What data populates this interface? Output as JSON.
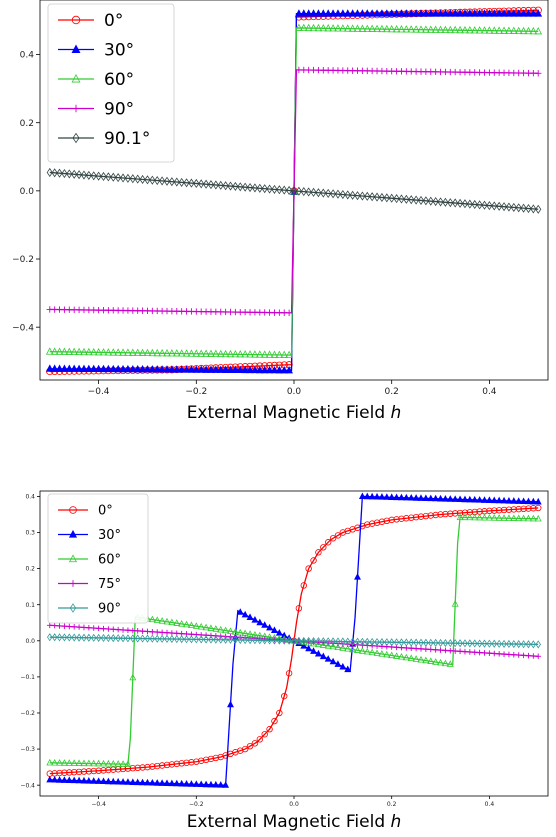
{
  "chart_data": [
    {
      "type": "line",
      "xlabel": "External Magnetic Field",
      "xlabel_var": "h",
      "xlim": [
        -0.52,
        0.52
      ],
      "ylim": [
        -0.555,
        0.56
      ],
      "xticks": [
        -0.4,
        -0.2,
        0.0,
        0.2,
        0.4
      ],
      "xtick_labels": [
        "−0.4",
        "−0.2",
        "0.0",
        "0.2",
        "0.4"
      ],
      "yticks": [
        -0.4,
        -0.2,
        0.0,
        0.2,
        0.4
      ],
      "ytick_labels": [
        "−0.4",
        "−0.2",
        "0.0",
        "0.2",
        "0.4"
      ],
      "grid": false,
      "legend_position": "top-left",
      "series": [
        {
          "name": "0°",
          "color": "#ff0000",
          "marker": "circle-open",
          "points": [
            [
              -0.5,
              -0.53
            ],
            [
              -0.25,
              -0.525
            ],
            [
              -0.005,
              -0.51
            ],
            [
              0.005,
              0.51
            ],
            [
              0.25,
              0.52
            ],
            [
              0.5,
              0.53
            ]
          ]
        },
        {
          "name": "30°",
          "color": "#0000ff",
          "marker": "triangle-filled",
          "points": [
            [
              -0.5,
              -0.522
            ],
            [
              -0.005,
              -0.527
            ],
            [
              0.005,
              0.52
            ],
            [
              0.5,
              0.52
            ]
          ]
        },
        {
          "name": "60°",
          "color": "#33cc33",
          "marker": "triangle-open",
          "points": [
            [
              -0.5,
              -0.472
            ],
            [
              -0.005,
              -0.482
            ],
            [
              0.005,
              0.478
            ],
            [
              0.5,
              0.468
            ]
          ]
        },
        {
          "name": "90°",
          "color": "#cc00cc",
          "marker": "plus",
          "points": [
            [
              -0.5,
              -0.348
            ],
            [
              -0.005,
              -0.358
            ],
            [
              0.005,
              0.355
            ],
            [
              0.5,
              0.345
            ]
          ]
        },
        {
          "name": "90.1°",
          "color": "#334444",
          "marker": "diamond-open",
          "points": [
            [
              -0.5,
              0.054
            ],
            [
              0.5,
              -0.054
            ]
          ]
        }
      ]
    },
    {
      "type": "line",
      "xlabel": "External Magnetic Field",
      "xlabel_var": "h",
      "xlim": [
        -0.52,
        0.52
      ],
      "ylim": [
        -0.43,
        0.415
      ],
      "xticks": [
        -0.4,
        -0.2,
        0.0,
        0.2,
        0.4
      ],
      "xtick_labels": [
        "−0.4",
        "−0.2",
        "0.0",
        "0.2",
        "0.4"
      ],
      "yticks": [
        -0.4,
        -0.3,
        -0.2,
        -0.1,
        0.0,
        0.1,
        0.2,
        0.3,
        0.4
      ],
      "ytick_labels": [
        "−0.4",
        "−0.3",
        "−0.2",
        "−0.1",
        "0.0",
        "0.1",
        "0.2",
        "0.3",
        "0.4"
      ],
      "grid": false,
      "legend_position": "top-left",
      "series": [
        {
          "name": "0°",
          "color": "#ff0000",
          "marker": "circle-open",
          "points": [
            [
              -0.5,
              -0.368
            ],
            [
              -0.4,
              -0.36
            ],
            [
              -0.3,
              -0.35
            ],
            [
              -0.2,
              -0.335
            ],
            [
              -0.15,
              -0.322
            ],
            [
              -0.1,
              -0.3
            ],
            [
              -0.075,
              -0.28
            ],
            [
              -0.05,
              -0.245
            ],
            [
              -0.03,
              -0.2
            ],
            [
              -0.015,
              -0.13
            ],
            [
              -0.005,
              -0.05
            ],
            [
              0.0,
              0.0
            ],
            [
              0.005,
              0.05
            ],
            [
              0.015,
              0.13
            ],
            [
              0.03,
              0.2
            ],
            [
              0.05,
              0.245
            ],
            [
              0.075,
              0.28
            ],
            [
              0.1,
              0.3
            ],
            [
              0.15,
              0.322
            ],
            [
              0.2,
              0.335
            ],
            [
              0.3,
              0.35
            ],
            [
              0.4,
              0.36
            ],
            [
              0.5,
              0.368
            ]
          ]
        },
        {
          "name": "30°",
          "color": "#0000ff",
          "marker": "triangle-filled",
          "points": [
            [
              -0.5,
              -0.385
            ],
            [
              -0.14,
              -0.4
            ],
            [
              -0.125,
              -0.065
            ],
            [
              -0.115,
              0.083
            ],
            [
              0.0,
              0.0
            ],
            [
              0.115,
              -0.083
            ],
            [
              0.125,
              0.065
            ],
            [
              0.14,
              0.4
            ],
            [
              0.5,
              0.385
            ]
          ]
        },
        {
          "name": "60°",
          "color": "#33cc33",
          "marker": "triangle-open",
          "points": [
            [
              -0.5,
              -0.338
            ],
            [
              -0.34,
              -0.342
            ],
            [
              -0.335,
              -0.27
            ],
            [
              -0.325,
              0.066
            ],
            [
              0.0,
              0.0
            ],
            [
              0.325,
              -0.066
            ],
            [
              0.335,
              0.27
            ],
            [
              0.34,
              0.342
            ],
            [
              0.5,
              0.338
            ]
          ]
        },
        {
          "name": "75°",
          "color": "#cc00cc",
          "marker": "plus",
          "points": [
            [
              -0.5,
              0.043
            ],
            [
              0.5,
              -0.043
            ]
          ]
        },
        {
          "name": "90°",
          "color": "#339999",
          "marker": "diamond-open",
          "points": [
            [
              -0.5,
              0.01
            ],
            [
              0.5,
              -0.01
            ]
          ]
        }
      ]
    }
  ]
}
